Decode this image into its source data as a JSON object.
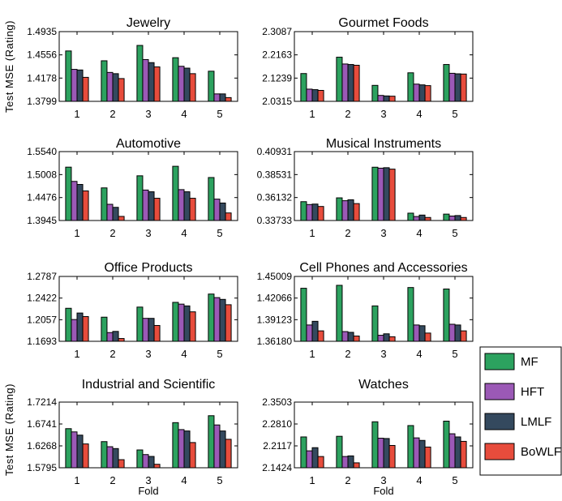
{
  "chart_data": {
    "type": "bar",
    "ylabel": "Test MSE (Rating)",
    "xlabel": "Fold",
    "categories": [
      "1",
      "2",
      "3",
      "4",
      "5"
    ],
    "legend": {
      "placement": "right",
      "entries": [
        {
          "name": "MF",
          "color": "#2ca25f"
        },
        {
          "name": "HFT",
          "color": "#9b59b6"
        },
        {
          "name": "LMLF",
          "color": "#34495e"
        },
        {
          "name": "BoWLF",
          "color": "#e74c3c"
        }
      ]
    },
    "panels": [
      {
        "title": "Jewelry",
        "yticks": [
          "1.4935",
          "1.4556",
          "1.4178",
          "1.3799"
        ],
        "ylim": [
          1.3799,
          1.4935
        ],
        "series": [
          {
            "name": "MF",
            "values": [
              1.462,
              1.446,
              1.471,
              1.451,
              1.429
            ]
          },
          {
            "name": "HFT",
            "values": [
              1.432,
              1.427,
              1.448,
              1.437,
              1.392
            ]
          },
          {
            "name": "LMLF",
            "values": [
              1.431,
              1.425,
              1.443,
              1.434,
              1.392
            ]
          },
          {
            "name": "BoWLF",
            "values": [
              1.419,
              1.417,
              1.436,
              1.425,
              1.386
            ]
          }
        ]
      },
      {
        "title": "Gourmet Foods",
        "yticks": [
          "2.3087",
          "2.2163",
          "2.1239",
          "2.0315"
        ],
        "ylim": [
          2.0315,
          2.3087
        ],
        "series": [
          {
            "name": "MF",
            "values": [
              2.142,
              2.207,
              2.095,
              2.145,
              2.178
            ]
          },
          {
            "name": "HFT",
            "values": [
              2.08,
              2.18,
              2.055,
              2.1,
              2.143
            ]
          },
          {
            "name": "LMLF",
            "values": [
              2.078,
              2.178,
              2.053,
              2.097,
              2.141
            ]
          },
          {
            "name": "BoWLF",
            "values": [
              2.075,
              2.175,
              2.052,
              2.094,
              2.14
            ]
          }
        ]
      },
      {
        "title": "Automotive",
        "yticks": [
          "1.5540",
          "1.5008",
          "1.4476",
          "1.3945"
        ],
        "ylim": [
          1.3945,
          1.554
        ],
        "series": [
          {
            "name": "MF",
            "values": [
              1.518,
              1.47,
              1.498,
              1.52,
              1.494
            ]
          },
          {
            "name": "HFT",
            "values": [
              1.485,
              1.432,
              1.465,
              1.466,
              1.444
            ]
          },
          {
            "name": "LMLF",
            "values": [
              1.478,
              1.425,
              1.461,
              1.461,
              1.435
            ]
          },
          {
            "name": "BoWLF",
            "values": [
              1.463,
              1.404,
              1.446,
              1.446,
              1.412
            ]
          }
        ]
      },
      {
        "title": "Musical Instruments",
        "yticks": [
          "0.40931",
          "0.38531",
          "0.36132",
          "0.33733"
        ],
        "ylim": [
          0.33733,
          0.40931
        ],
        "series": [
          {
            "name": "MF",
            "values": [
              0.357,
              0.361,
              0.393,
              0.345,
              0.344
            ]
          },
          {
            "name": "HFT",
            "values": [
              0.354,
              0.358,
              0.392,
              0.3415,
              0.342
            ]
          },
          {
            "name": "LMLF",
            "values": [
              0.3545,
              0.359,
              0.3925,
              0.343,
              0.3425
            ]
          },
          {
            "name": "BoWLF",
            "values": [
              0.352,
              0.355,
              0.391,
              0.3405,
              0.3405
            ]
          }
        ]
      },
      {
        "title": "Office Products",
        "yticks": [
          "1.2787",
          "1.2422",
          "1.2057",
          "1.1693"
        ],
        "ylim": [
          1.1693,
          1.2787
        ],
        "series": [
          {
            "name": "MF",
            "values": [
              1.225,
              1.21,
              1.227,
              1.235,
              1.249
            ]
          },
          {
            "name": "HFT",
            "values": [
              1.206,
              1.184,
              1.208,
              1.232,
              1.243
            ]
          },
          {
            "name": "LMLF",
            "values": [
              1.217,
              1.186,
              1.208,
              1.229,
              1.24
            ]
          },
          {
            "name": "BoWLF",
            "values": [
              1.211,
              1.174,
              1.196,
              1.219,
              1.231
            ]
          }
        ]
      },
      {
        "title": "Cell Phones and Accessories",
        "yticks": [
          "1.45009",
          "1.42066",
          "1.39123",
          "1.36180"
        ],
        "ylim": [
          1.3618,
          1.45009
        ],
        "series": [
          {
            "name": "MF",
            "values": [
              1.434,
              1.438,
              1.41,
              1.435,
              1.433
            ]
          },
          {
            "name": "HFT",
            "values": [
              1.384,
              1.375,
              1.37,
              1.384,
              1.385
            ]
          },
          {
            "name": "LMLF",
            "values": [
              1.389,
              1.374,
              1.372,
              1.383,
              1.384
            ]
          },
          {
            "name": "BoWLF",
            "values": [
              1.376,
              1.369,
              1.368,
              1.373,
              1.376
            ]
          }
        ]
      },
      {
        "title": "Industrial and Scientific",
        "yticks": [
          "1.7214",
          "1.6741",
          "1.6268",
          "1.5795"
        ],
        "ylim": [
          1.5795,
          1.7214
        ],
        "series": [
          {
            "name": "MF",
            "values": [
              1.664,
              1.636,
              1.618,
              1.677,
              1.692
            ]
          },
          {
            "name": "HFT",
            "values": [
              1.657,
              1.625,
              1.608,
              1.662,
              1.672
            ]
          },
          {
            "name": "LMLF",
            "values": [
              1.65,
              1.621,
              1.604,
              1.659,
              1.659
            ]
          },
          {
            "name": "BoWLF",
            "values": [
              1.631,
              1.597,
              1.587,
              1.634,
              1.641
            ]
          }
        ]
      },
      {
        "title": "Watches",
        "yticks": [
          "2.3503",
          "2.2810",
          "2.2117",
          "2.1424"
        ],
        "ylim": [
          2.1424,
          2.3503
        ],
        "series": [
          {
            "name": "MF",
            "values": [
              2.24,
              2.242,
              2.288,
              2.276,
              2.29
            ]
          },
          {
            "name": "HFT",
            "values": [
              2.196,
              2.178,
              2.236,
              2.237,
              2.25
            ]
          },
          {
            "name": "LMLF",
            "values": [
              2.206,
              2.18,
              2.235,
              2.229,
              2.24
            ]
          },
          {
            "name": "BoWLF",
            "values": [
              2.178,
              2.158,
              2.213,
              2.208,
              2.226
            ]
          }
        ]
      }
    ]
  }
}
